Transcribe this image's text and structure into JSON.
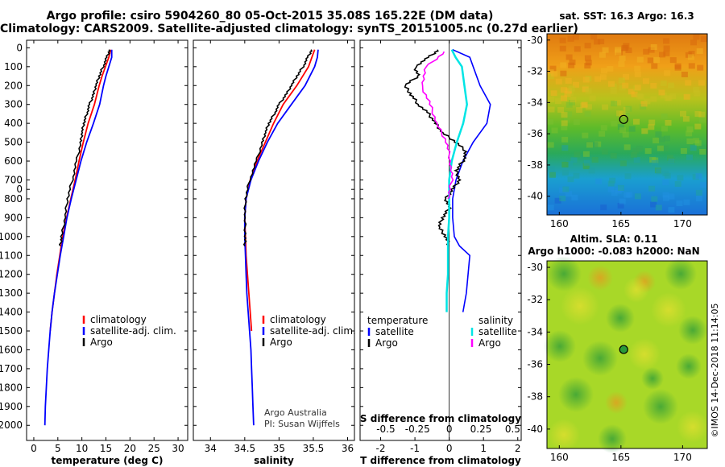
{
  "title": {
    "line1": "Argo profile: csiro 5904260_80 05-Oct-2015 35.08S 165.22E (DM data)",
    "line2": "Climatology: CARS2009. Satellite-adjusted climatology: synTS_20151005.nc (0.27d earlier)"
  },
  "colors": {
    "climatology": "#ff0000",
    "satellite": "#0000ff",
    "argo": "#000000",
    "salinity_satellite": "#00e5e5",
    "salinity_argo": "#ff00ff"
  },
  "depth_ticks": [
    "0",
    "100",
    "200",
    "300",
    "400",
    "500",
    "600",
    "700",
    "0",
    "800",
    "900",
    "1000",
    "1100",
    "1200",
    "1300",
    "1400",
    "1500",
    "1600",
    "1700",
    "1800",
    "1900",
    "2000"
  ],
  "chart_data": [
    {
      "type": "line",
      "name": "temperature",
      "xlabel": "temperature (deg C)",
      "ylabel": "depth",
      "xlim": [
        -1.5,
        32
      ],
      "ylim": [
        2080,
        -40
      ],
      "xticks": [
        "0",
        "5",
        "10",
        "15",
        "20",
        "25",
        "30"
      ],
      "legend": [
        "climatology",
        "satellite-adj. clim.",
        "Argo"
      ],
      "series": [
        {
          "name": "climatology",
          "color_key": "climatology",
          "depth": [
            10,
            50,
            100,
            150,
            200,
            300,
            400,
            500,
            600,
            700,
            800,
            900,
            1000,
            1100,
            1200,
            1300,
            1400,
            1500
          ],
          "values": [
            16.0,
            15.6,
            14.9,
            14.2,
            13.6,
            12.6,
            11.3,
            10.3,
            9.4,
            8.6,
            7.7,
            6.8,
            6.0,
            5.4,
            4.8,
            4.3,
            3.8,
            3.4
          ]
        },
        {
          "name": "satellite-adj. clim.",
          "color_key": "satellite",
          "depth": [
            10,
            50,
            100,
            150,
            200,
            300,
            400,
            500,
            600,
            700,
            800,
            900,
            1000,
            1100,
            1200,
            1300,
            1400,
            1500,
            1600,
            1700,
            1800,
            1900,
            2000
          ],
          "values": [
            16.2,
            16.2,
            15.6,
            15.0,
            14.5,
            13.7,
            12.4,
            11.0,
            9.8,
            8.8,
            7.8,
            6.9,
            6.2,
            5.5,
            4.9,
            4.3,
            3.8,
            3.4,
            3.1,
            2.8,
            2.6,
            2.4,
            2.3
          ]
        },
        {
          "name": "Argo",
          "color_key": "argo",
          "depth": [
            10,
            50,
            100,
            150,
            200,
            250,
            300,
            350,
            400,
            450,
            500,
            600,
            700,
            800,
            900,
            1000,
            1050
          ],
          "values": [
            15.8,
            15.2,
            14.4,
            13.6,
            12.9,
            12.4,
            11.6,
            11.0,
            10.4,
            10.0,
            9.8,
            8.9,
            8.0,
            7.0,
            6.5,
            5.8,
            5.5
          ]
        }
      ]
    },
    {
      "type": "line",
      "name": "salinity",
      "xlabel": "salinity",
      "ylabel": "depth",
      "xlim": [
        33.75,
        36.1
      ],
      "ylim": [
        2080,
        -40
      ],
      "xticks": [
        "34",
        "34.5",
        "35",
        "35.5",
        "36"
      ],
      "legend": [
        "climatology",
        "satellite-adj. clim.",
        "Argo"
      ],
      "annotation": [
        "Argo Australia",
        "PI: Susan Wijffels"
      ],
      "series": [
        {
          "name": "climatology",
          "color_key": "climatology",
          "depth": [
            10,
            50,
            100,
            200,
            300,
            400,
            500,
            600,
            700,
            800,
            900,
            1000,
            1100,
            1200,
            1300,
            1400,
            1500
          ],
          "values": [
            35.52,
            35.48,
            35.43,
            35.26,
            35.06,
            34.92,
            34.8,
            34.68,
            34.58,
            34.52,
            34.5,
            34.51,
            34.52,
            34.54,
            34.56,
            34.58,
            34.6
          ]
        },
        {
          "name": "satellite-adj. clim.",
          "color_key": "satellite",
          "depth": [
            10,
            50,
            100,
            200,
            300,
            400,
            500,
            600,
            700,
            800,
            900,
            1000,
            1100,
            1200,
            1300,
            1400,
            1500,
            1600,
            1700,
            1800,
            1900,
            2000
          ],
          "values": [
            35.57,
            35.56,
            35.52,
            35.38,
            35.18,
            34.98,
            34.83,
            34.7,
            34.59,
            34.52,
            34.5,
            34.5,
            34.51,
            34.52,
            34.53,
            34.55,
            34.57,
            34.59,
            34.6,
            34.61,
            34.62,
            34.63
          ]
        },
        {
          "name": "Argo",
          "color_key": "argo",
          "depth": [
            10,
            50,
            100,
            150,
            200,
            250,
            300,
            350,
            400,
            450,
            500,
            600,
            700,
            800,
            900,
            1000,
            1050
          ],
          "values": [
            35.48,
            35.42,
            35.35,
            35.26,
            35.18,
            35.1,
            35.0,
            34.93,
            34.85,
            34.8,
            34.76,
            34.67,
            34.57,
            34.51,
            34.5,
            34.51,
            34.5
          ]
        }
      ]
    },
    {
      "type": "line",
      "name": "differences",
      "xlabel": "T difference from climatology",
      "xlabel_top": "S difference from climatology",
      "xlim": [
        -2.6,
        2.1
      ],
      "ylim": [
        2080,
        -40
      ],
      "xticks": [
        "-2",
        "-1",
        "0",
        "1",
        "2"
      ],
      "xticks_salinity": [
        "-0.5",
        "-0.25",
        "0",
        "0.25",
        "0.5"
      ],
      "legend_headers": [
        "temperature",
        "salinity"
      ],
      "legend": [
        "satellite",
        "Argo",
        "satellite",
        "Argo"
      ],
      "series": [
        {
          "name": "temperature satellite",
          "color_key": "satellite",
          "depth": [
            10,
            50,
            100,
            200,
            300,
            400,
            500,
            600,
            700,
            800,
            900,
            1000,
            1050,
            1100,
            1300,
            1400
          ],
          "values": [
            0.1,
            0.6,
            0.7,
            0.9,
            1.2,
            1.1,
            0.7,
            0.4,
            0.2,
            0.1,
            0.1,
            0.15,
            0.3,
            0.6,
            0.5,
            0.4
          ]
        },
        {
          "name": "temperature Argo",
          "color_key": "argo",
          "depth": [
            10,
            50,
            100,
            150,
            200,
            250,
            300,
            350,
            400,
            450,
            500,
            550,
            600,
            650,
            700,
            750,
            800,
            850,
            900,
            950,
            1000,
            1050
          ],
          "values": [
            -0.3,
            -0.6,
            -1.0,
            -0.9,
            -1.3,
            -1.1,
            -0.9,
            -0.6,
            -0.4,
            -0.2,
            0.2,
            0.5,
            0.4,
            0.2,
            0.3,
            0.1,
            -0.1,
            0.0,
            -0.2,
            -0.3,
            -0.1,
            0.0
          ]
        },
        {
          "name": "salinity satellite",
          "color_key": "salinity_satellite",
          "depth": [
            10,
            50,
            100,
            200,
            300,
            400,
            500,
            600,
            700,
            800,
            900,
            1000,
            1100,
            1200,
            1300,
            1400
          ],
          "values": [
            0.02,
            0.05,
            0.1,
            0.12,
            0.14,
            0.11,
            0.06,
            0.02,
            0.0,
            0.0,
            0.0,
            -0.01,
            -0.01,
            -0.01,
            -0.02,
            -0.02
          ]
        },
        {
          "name": "salinity Argo",
          "color_key": "salinity_argo",
          "depth": [
            20,
            100,
            200,
            300,
            400,
            500,
            600,
            700,
            800
          ],
          "values": [
            -0.03,
            -0.18,
            -0.22,
            -0.15,
            -0.1,
            -0.02,
            0.01,
            0.02,
            -0.01
          ]
        }
      ]
    },
    {
      "type": "heatmap",
      "name": "sst_map",
      "title": "sat. SST: 16.3 Argo: 16.3",
      "xlim": [
        159,
        172
      ],
      "ylim": [
        -41.2,
        -29.6
      ],
      "xticks": [
        "160",
        "165",
        "170"
      ],
      "yticks": [
        "-30",
        "-32",
        "-34",
        "-36",
        "-38",
        "-40"
      ],
      "marker": {
        "lon": 165.22,
        "lat": -35.08
      }
    },
    {
      "type": "heatmap",
      "name": "sla_map",
      "title": "Altim. SLA: 0.11",
      "subtitle": "Argo h1000: -0.083 h2000: NaN",
      "xlim": [
        159,
        172
      ],
      "ylim": [
        -41.2,
        -29.6
      ],
      "xticks": [
        "160",
        "165",
        "170"
      ],
      "yticks": [
        "-30",
        "-32",
        "-34",
        "-36",
        "-38",
        "-40"
      ],
      "marker": {
        "lon": 165.22,
        "lat": -35.08
      }
    }
  ],
  "footer": "©IMOS 14-Dec-2018 11:14:05"
}
